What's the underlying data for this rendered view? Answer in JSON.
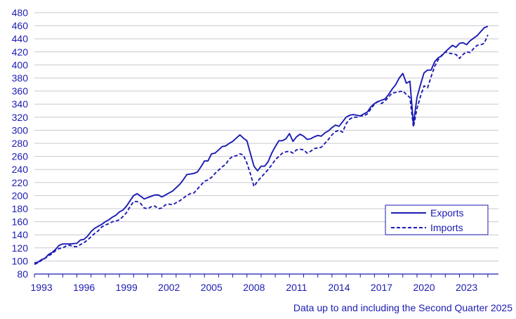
{
  "colors": {
    "series": "#1b1bb3",
    "grid": "#c8c8d2",
    "text": "#1b1bb3",
    "background": "#ffffff"
  },
  "footnote": "Data up to and including the Second Quarter 2025",
  "chart_data": {
    "type": "line",
    "title": "",
    "xlabel": "",
    "ylabel": "",
    "x_ticks": [
      "1993",
      "1996",
      "1999",
      "2002",
      "2005",
      "2008",
      "2011",
      "2014",
      "2017",
      "2020",
      "2023"
    ],
    "y_ticks": [
      80,
      100,
      120,
      140,
      160,
      180,
      200,
      220,
      240,
      260,
      280,
      300,
      320,
      340,
      360,
      380,
      400,
      420,
      440,
      460,
      480
    ],
    "ylim": [
      80,
      480
    ],
    "xlim": [
      1993.0,
      2025.75
    ],
    "grid": true,
    "legend_position": "lower-right",
    "series": [
      {
        "name": "Exports",
        "style": "solid",
        "points": [
          [
            1993.0,
            97
          ],
          [
            1993.25,
            98
          ],
          [
            1993.5,
            102
          ],
          [
            1993.75,
            104
          ],
          [
            1994.0,
            110
          ],
          [
            1994.25,
            113
          ],
          [
            1994.5,
            118
          ],
          [
            1994.75,
            124
          ],
          [
            1995.0,
            126
          ],
          [
            1995.5,
            126
          ],
          [
            1996.0,
            127
          ],
          [
            1996.25,
            132
          ],
          [
            1996.5,
            133
          ],
          [
            1996.75,
            138
          ],
          [
            1997.0,
            145
          ],
          [
            1997.25,
            150
          ],
          [
            1997.5,
            153
          ],
          [
            1997.75,
            156
          ],
          [
            1998.0,
            160
          ],
          [
            1998.25,
            163
          ],
          [
            1998.5,
            167
          ],
          [
            1998.75,
            170
          ],
          [
            1999.0,
            175
          ],
          [
            1999.25,
            178
          ],
          [
            1999.5,
            184
          ],
          [
            1999.75,
            192
          ],
          [
            2000.0,
            200
          ],
          [
            2000.25,
            203
          ],
          [
            2000.5,
            199
          ],
          [
            2000.75,
            195
          ],
          [
            2001.0,
            197
          ],
          [
            2001.25,
            199
          ],
          [
            2001.5,
            201
          ],
          [
            2001.75,
            201
          ],
          [
            2002.0,
            198
          ],
          [
            2002.25,
            201
          ],
          [
            2002.5,
            204
          ],
          [
            2002.75,
            207
          ],
          [
            2003.0,
            212
          ],
          [
            2003.25,
            217
          ],
          [
            2003.5,
            224
          ],
          [
            2003.75,
            232
          ],
          [
            2004.0,
            233
          ],
          [
            2004.25,
            234
          ],
          [
            2004.5,
            236
          ],
          [
            2004.75,
            244
          ],
          [
            2005.0,
            253
          ],
          [
            2005.25,
            253
          ],
          [
            2005.5,
            264
          ],
          [
            2005.75,
            265
          ],
          [
            2006.0,
            270
          ],
          [
            2006.25,
            275
          ],
          [
            2006.5,
            276
          ],
          [
            2006.75,
            280
          ],
          [
            2007.0,
            283
          ],
          [
            2007.25,
            288
          ],
          [
            2007.5,
            293
          ],
          [
            2007.75,
            288
          ],
          [
            2008.0,
            284
          ],
          [
            2008.25,
            264
          ],
          [
            2008.5,
            245
          ],
          [
            2008.75,
            238
          ],
          [
            2009.0,
            245
          ],
          [
            2009.25,
            245
          ],
          [
            2009.5,
            252
          ],
          [
            2009.75,
            265
          ],
          [
            2010.0,
            275
          ],
          [
            2010.25,
            284
          ],
          [
            2010.5,
            284
          ],
          [
            2010.75,
            287
          ],
          [
            2011.0,
            295
          ],
          [
            2011.25,
            283
          ],
          [
            2011.5,
            290
          ],
          [
            2011.75,
            294
          ],
          [
            2012.0,
            291
          ],
          [
            2012.25,
            286
          ],
          [
            2012.5,
            287
          ],
          [
            2012.75,
            290
          ],
          [
            2013.0,
            292
          ],
          [
            2013.25,
            291
          ],
          [
            2013.5,
            296
          ],
          [
            2013.75,
            299
          ],
          [
            2014.0,
            304
          ],
          [
            2014.25,
            308
          ],
          [
            2014.5,
            306
          ],
          [
            2014.75,
            313
          ],
          [
            2015.0,
            320
          ],
          [
            2015.25,
            323
          ],
          [
            2015.5,
            324
          ],
          [
            2015.75,
            323
          ],
          [
            2016.0,
            322
          ],
          [
            2016.25,
            325
          ],
          [
            2016.5,
            328
          ],
          [
            2016.75,
            336
          ],
          [
            2017.0,
            341
          ],
          [
            2017.25,
            344
          ],
          [
            2017.5,
            346
          ],
          [
            2017.75,
            348
          ],
          [
            2018.0,
            355
          ],
          [
            2018.25,
            363
          ],
          [
            2018.5,
            370
          ],
          [
            2018.75,
            380
          ],
          [
            2019.0,
            387
          ],
          [
            2019.25,
            372
          ],
          [
            2019.5,
            375
          ],
          [
            2019.75,
            309
          ],
          [
            2020.0,
            350
          ],
          [
            2020.25,
            370
          ],
          [
            2020.5,
            388
          ],
          [
            2020.75,
            392
          ],
          [
            2021.0,
            392
          ],
          [
            2021.25,
            405
          ],
          [
            2021.5,
            411
          ],
          [
            2021.75,
            414
          ],
          [
            2022.0,
            420
          ],
          [
            2022.25,
            425
          ],
          [
            2022.5,
            430
          ],
          [
            2022.75,
            427
          ],
          [
            2023.0,
            433
          ],
          [
            2023.25,
            434
          ],
          [
            2023.5,
            431
          ],
          [
            2023.75,
            437
          ],
          [
            2024.0,
            441
          ],
          [
            2024.25,
            445
          ],
          [
            2024.5,
            451
          ],
          [
            2024.75,
            457
          ],
          [
            2025.0,
            459
          ]
        ]
      },
      {
        "name": "Imports",
        "style": "dashed",
        "points": [
          [
            1993.0,
            95
          ],
          [
            1993.25,
            97
          ],
          [
            1993.5,
            101
          ],
          [
            1993.75,
            104
          ],
          [
            1994.0,
            108
          ],
          [
            1994.25,
            111
          ],
          [
            1994.5,
            116
          ],
          [
            1994.75,
            119
          ],
          [
            1995.0,
            120
          ],
          [
            1995.25,
            123
          ],
          [
            1995.5,
            124
          ],
          [
            1995.75,
            122
          ],
          [
            1996.0,
            122
          ],
          [
            1996.25,
            125
          ],
          [
            1996.5,
            128
          ],
          [
            1996.75,
            132
          ],
          [
            1997.0,
            137
          ],
          [
            1997.25,
            142
          ],
          [
            1997.5,
            146
          ],
          [
            1997.75,
            152
          ],
          [
            1998.0,
            155
          ],
          [
            1998.25,
            157
          ],
          [
            1998.5,
            160
          ],
          [
            1998.75,
            161
          ],
          [
            1999.0,
            163
          ],
          [
            1999.25,
            168
          ],
          [
            1999.5,
            174
          ],
          [
            1999.75,
            183
          ],
          [
            2000.0,
            191
          ],
          [
            2000.25,
            191
          ],
          [
            2000.5,
            188
          ],
          [
            2000.75,
            181
          ],
          [
            2001.0,
            180
          ],
          [
            2001.25,
            183
          ],
          [
            2001.5,
            184
          ],
          [
            2001.75,
            180
          ],
          [
            2002.0,
            181
          ],
          [
            2002.25,
            186
          ],
          [
            2002.5,
            187
          ],
          [
            2002.75,
            186
          ],
          [
            2003.0,
            189
          ],
          [
            2003.25,
            192
          ],
          [
            2003.5,
            196
          ],
          [
            2003.75,
            200
          ],
          [
            2004.0,
            203
          ],
          [
            2004.25,
            204
          ],
          [
            2004.5,
            210
          ],
          [
            2004.75,
            216
          ],
          [
            2005.0,
            222
          ],
          [
            2005.25,
            224
          ],
          [
            2005.5,
            228
          ],
          [
            2005.75,
            234
          ],
          [
            2006.0,
            239
          ],
          [
            2006.25,
            244
          ],
          [
            2006.5,
            248
          ],
          [
            2006.75,
            256
          ],
          [
            2007.0,
            260
          ],
          [
            2007.25,
            261
          ],
          [
            2007.5,
            264
          ],
          [
            2007.75,
            262
          ],
          [
            2008.0,
            250
          ],
          [
            2008.25,
            233
          ],
          [
            2008.5,
            214
          ],
          [
            2008.75,
            222
          ],
          [
            2009.0,
            228
          ],
          [
            2009.25,
            234
          ],
          [
            2009.5,
            240
          ],
          [
            2009.75,
            247
          ],
          [
            2010.0,
            255
          ],
          [
            2010.25,
            260
          ],
          [
            2010.5,
            265
          ],
          [
            2010.75,
            267
          ],
          [
            2011.0,
            268
          ],
          [
            2011.25,
            265
          ],
          [
            2011.5,
            270
          ],
          [
            2011.75,
            271
          ],
          [
            2012.0,
            270
          ],
          [
            2012.25,
            265
          ],
          [
            2012.5,
            268
          ],
          [
            2012.75,
            272
          ],
          [
            2013.0,
            273
          ],
          [
            2013.25,
            274
          ],
          [
            2013.5,
            280
          ],
          [
            2013.75,
            286
          ],
          [
            2014.0,
            293
          ],
          [
            2014.25,
            298
          ],
          [
            2014.5,
            300
          ],
          [
            2014.75,
            297
          ],
          [
            2015.0,
            310
          ],
          [
            2015.25,
            317
          ],
          [
            2015.5,
            320
          ],
          [
            2015.75,
            320
          ],
          [
            2016.0,
            322
          ],
          [
            2016.25,
            322
          ],
          [
            2016.5,
            325
          ],
          [
            2016.75,
            333
          ],
          [
            2017.0,
            340
          ],
          [
            2017.25,
            344
          ],
          [
            2017.5,
            341
          ],
          [
            2017.75,
            345
          ],
          [
            2018.0,
            351
          ],
          [
            2018.25,
            357
          ],
          [
            2018.5,
            358
          ],
          [
            2018.75,
            359
          ],
          [
            2019.0,
            360
          ],
          [
            2019.25,
            355
          ],
          [
            2019.5,
            350
          ],
          [
            2019.75,
            305
          ],
          [
            2020.0,
            333
          ],
          [
            2020.25,
            352
          ],
          [
            2020.5,
            368
          ],
          [
            2020.75,
            365
          ],
          [
            2021.0,
            382
          ],
          [
            2021.25,
            398
          ],
          [
            2021.5,
            408
          ],
          [
            2021.75,
            415
          ],
          [
            2022.0,
            420
          ],
          [
            2022.25,
            418
          ],
          [
            2022.5,
            417
          ],
          [
            2022.75,
            416
          ],
          [
            2023.0,
            410
          ],
          [
            2023.25,
            416
          ],
          [
            2023.5,
            420
          ],
          [
            2023.75,
            419
          ],
          [
            2024.0,
            425
          ],
          [
            2024.25,
            430
          ],
          [
            2024.5,
            431
          ],
          [
            2024.75,
            433
          ],
          [
            2025.0,
            446
          ]
        ]
      }
    ]
  }
}
